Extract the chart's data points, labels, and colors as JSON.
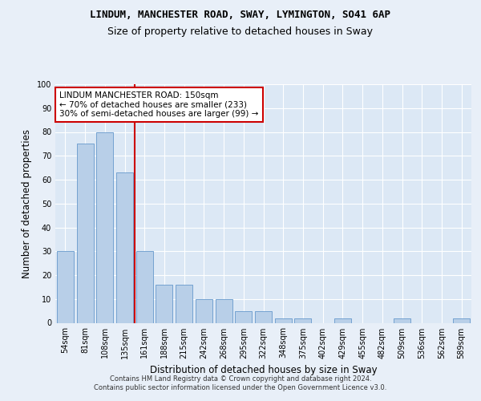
{
  "title": "LINDUM, MANCHESTER ROAD, SWAY, LYMINGTON, SO41 6AP",
  "subtitle": "Size of property relative to detached houses in Sway",
  "xlabel": "Distribution of detached houses by size in Sway",
  "ylabel": "Number of detached properties",
  "categories": [
    "54sqm",
    "81sqm",
    "108sqm",
    "135sqm",
    "161sqm",
    "188sqm",
    "215sqm",
    "242sqm",
    "268sqm",
    "295sqm",
    "322sqm",
    "348sqm",
    "375sqm",
    "402sqm",
    "429sqm",
    "455sqm",
    "482sqm",
    "509sqm",
    "536sqm",
    "562sqm",
    "589sqm"
  ],
  "values": [
    30,
    75,
    80,
    63,
    30,
    16,
    16,
    10,
    10,
    5,
    5,
    2,
    2,
    0,
    2,
    0,
    0,
    2,
    0,
    0,
    2
  ],
  "bar_color": "#b8cfe8",
  "bar_edge_color": "#6699cc",
  "vline_color": "#cc0000",
  "annotation_text": "LINDUM MANCHESTER ROAD: 150sqm\n← 70% of detached houses are smaller (233)\n30% of semi-detached houses are larger (99) →",
  "annotation_box_color": "white",
  "annotation_box_edge": "#cc0000",
  "bg_color": "#e8eff8",
  "plot_bg_color": "#dce8f5",
  "ylim": [
    0,
    100
  ],
  "yticks": [
    0,
    10,
    20,
    30,
    40,
    50,
    60,
    70,
    80,
    90,
    100
  ],
  "footer": "Contains HM Land Registry data © Crown copyright and database right 2024.\nContains public sector information licensed under the Open Government Licence v3.0.",
  "title_fontsize": 9,
  "subtitle_fontsize": 9,
  "tick_fontsize": 7,
  "label_fontsize": 8.5,
  "annotation_fontsize": 7.5,
  "footer_fontsize": 6
}
